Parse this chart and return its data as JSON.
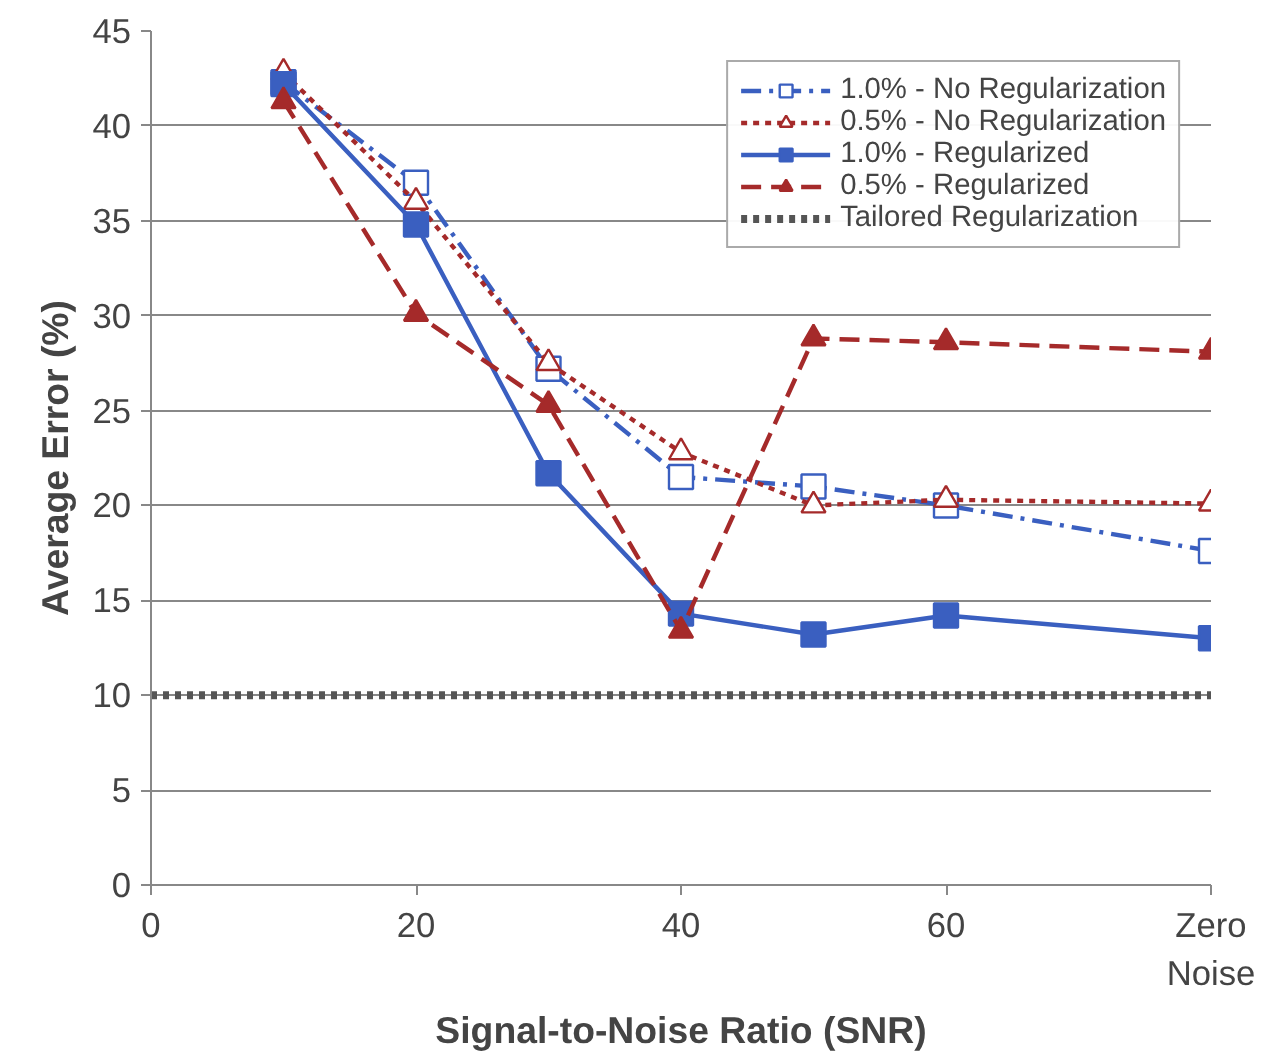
{
  "chart_data": {
    "type": "line",
    "xlabel": "Signal-to-Noise Ratio (SNR)",
    "ylabel": "Average Error (%)",
    "x": [
      10,
      20,
      30,
      40,
      50,
      60,
      80
    ],
    "series": [
      {
        "name": "1.0% - No Regularization",
        "color": "#3a5fc0",
        "marker": "square",
        "line_style": "dashdot",
        "values": [
          42.3,
          37.0,
          27.2,
          21.5,
          21.0,
          20.0,
          17.6
        ]
      },
      {
        "name": "0.5% - No Regularization",
        "color": "#a52a2a",
        "marker": "triangle",
        "line_style": "dotted",
        "values": [
          42.8,
          36.0,
          27.5,
          22.8,
          20.0,
          20.3,
          20.1
        ]
      },
      {
        "name": "1.0% - Regularized",
        "color": "#3a5fc0",
        "marker": "square",
        "line_style": "solid",
        "values": [
          42.2,
          34.8,
          21.7,
          14.3,
          13.2,
          14.2,
          13.0
        ]
      },
      {
        "name": "0.5% - Regularized",
        "color": "#a52a2a",
        "marker": "triangle",
        "line_style": "dashed",
        "values": [
          41.3,
          30.1,
          25.3,
          13.4,
          28.8,
          28.6,
          28.1
        ]
      },
      {
        "name": "Tailored Regularization",
        "color": "#555555",
        "marker": "none",
        "line_style": "dotted",
        "x": [
          0,
          80
        ],
        "values": [
          10,
          10
        ]
      }
    ],
    "xlim": [
      0,
      80
    ],
    "xticks": [
      0,
      20,
      40,
      60,
      {
        "value": 80,
        "label": "Zero Noise"
      }
    ],
    "ylim": [
      0,
      45
    ],
    "yticks": [
      0,
      5,
      10,
      15,
      20,
      25,
      30,
      35,
      40,
      45
    ],
    "grid": "y",
    "legend": "top right"
  }
}
